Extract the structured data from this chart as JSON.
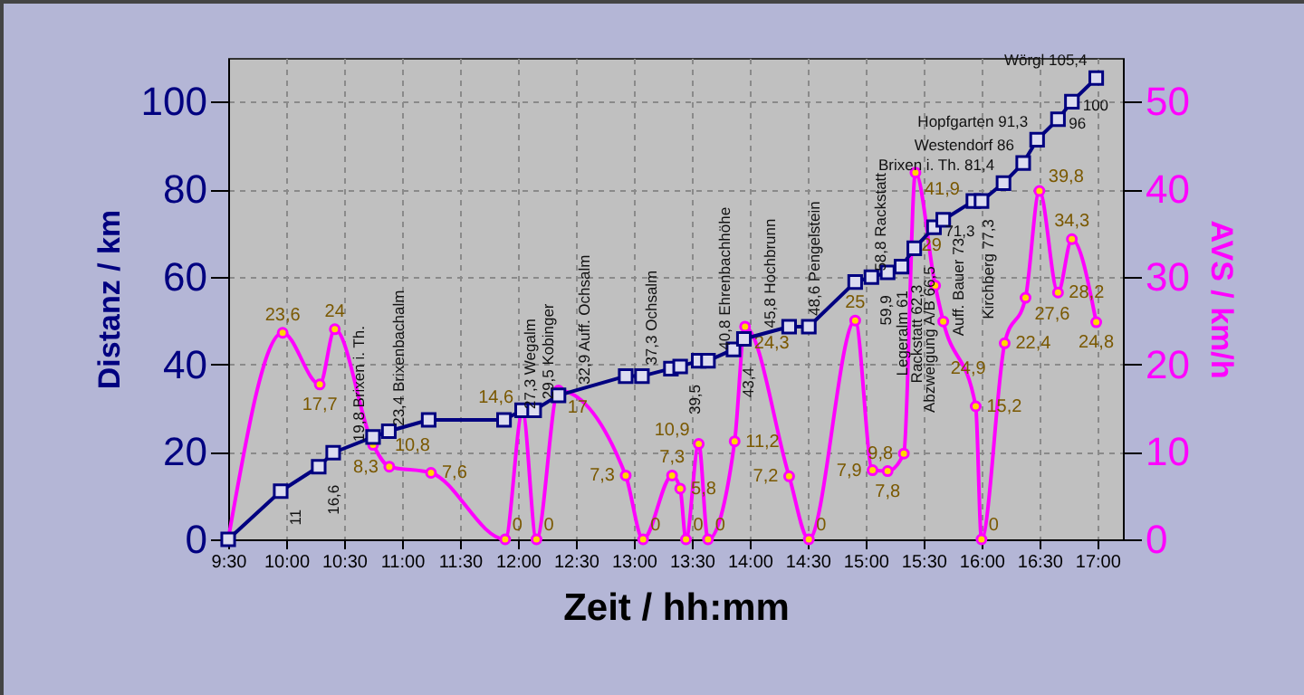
{
  "chart_data": {
    "type": "line",
    "xlabel": "Zeit / hh:mm",
    "ylabel": "Distanz / km",
    "y2label": "AVS / km/h",
    "xlim": [
      9.5,
      17.22
    ],
    "ylim": [
      0,
      110
    ],
    "y2lim": [
      0,
      55
    ],
    "xticks": [
      {
        "value": 9.5,
        "label": "9:30"
      },
      {
        "value": 10,
        "label": "10:00"
      },
      {
        "value": 10.5,
        "label": "10:30"
      },
      {
        "value": 11,
        "label": "11:00"
      },
      {
        "value": 11.5,
        "label": "11:30"
      },
      {
        "value": 12,
        "label": "12:00"
      },
      {
        "value": 12.5,
        "label": "12:30"
      },
      {
        "value": 13,
        "label": "13:00"
      },
      {
        "value": 13.5,
        "label": "13:30"
      },
      {
        "value": 14,
        "label": "14:00"
      },
      {
        "value": 14.5,
        "label": "14:30"
      },
      {
        "value": 15,
        "label": "15:00"
      },
      {
        "value": 15.5,
        "label": "15:30"
      },
      {
        "value": 16,
        "label": "16:00"
      },
      {
        "value": 16.5,
        "label": "16:30"
      },
      {
        "value": 17,
        "label": "17:00"
      }
    ],
    "yticks": [
      0,
      20,
      40,
      60,
      80,
      100
    ],
    "y2ticks": [
      0,
      10,
      20,
      30,
      40,
      50
    ],
    "grid": true,
    "series": [
      {
        "color": "#000080",
        "marker": "square",
        "x": [
          9.5,
          9.953,
          10.281,
          10.406,
          10.75,
          10.886,
          11.23,
          11.88,
          12.036,
          12.14,
          12.35,
          12.93,
          13.07,
          13.32,
          13.4,
          13.56,
          13.64,
          13.86,
          13.95,
          14.34,
          14.51,
          14.91,
          15.05,
          15.19,
          15.31,
          15.42,
          15.59,
          15.67,
          15.93,
          16.0,
          16.19,
          16.36,
          16.48,
          16.66,
          16.78,
          16.99
        ],
        "values": [
          0,
          11,
          16.6,
          19.8,
          23.4,
          24.7,
          27.3,
          27.3,
          29.5,
          29.5,
          32.9,
          37.3,
          37.3,
          39,
          39.5,
          40.8,
          40.8,
          43.4,
          45.8,
          48.6,
          48.6,
          58.8,
          59.9,
          61,
          62.3,
          66.5,
          71.3,
          73,
          77.3,
          77.3,
          81.4,
          86,
          91.3,
          96,
          100,
          105.4
        ]
      },
      {
        "color": "#ff00ff",
        "marker": "circle",
        "axis": "y2",
        "x": [
          9.5,
          9.97,
          10.29,
          10.42,
          10.75,
          10.89,
          11.25,
          11.89,
          12.04,
          12.16,
          12.35,
          12.93,
          13.08,
          13.33,
          13.4,
          13.45,
          13.56,
          13.64,
          13.87,
          13.96,
          14.34,
          14.51,
          14.91,
          15.06,
          15.19,
          15.33,
          15.43,
          15.6,
          15.67,
          15.95,
          16.0,
          16.2,
          16.38,
          16.5,
          16.66,
          16.78,
          16.99
        ],
        "values": [
          0,
          23.6,
          17.7,
          24,
          10.8,
          8.3,
          7.6,
          0,
          14.6,
          0,
          17,
          7.3,
          0,
          7.3,
          5.8,
          0,
          10.9,
          0,
          11.2,
          24.3,
          7.2,
          0,
          25,
          7.9,
          7.8,
          9.8,
          41.9,
          29,
          24.9,
          15.2,
          0,
          22.4,
          27.6,
          39.8,
          28.2,
          34.3,
          24.8
        ],
        "value_labels": [
          null,
          "23,6",
          "17,7",
          "24",
          "10,8",
          "8,3",
          "7,6",
          "0",
          "14,6",
          "0",
          "17",
          "7,3",
          "0",
          "7,3",
          "5,8",
          "0",
          "10,9",
          "0",
          "11,2",
          "24,3",
          "7,2",
          "0",
          "25",
          "7,9",
          "7,8",
          "9,8",
          "41,9",
          "29",
          "24,9",
          "15,2",
          "0",
          "22,4",
          "27,6",
          "39,8",
          "28,2",
          "34,3",
          "24,8"
        ]
      }
    ],
    "annotations": [
      {
        "text": "11",
        "x": 9.953,
        "y": 11
      },
      {
        "text": "16,6",
        "x": 10.281,
        "y": 16.6
      },
      {
        "text": "19,8 Brixen i. Th.",
        "x": 10.406,
        "y": 19.8
      },
      {
        "text": "23,4 Brixenbachalm",
        "x": 10.75,
        "y": 23.4
      },
      {
        "text": "27,3 Wegalm",
        "x": 11.88,
        "y": 27.3
      },
      {
        "text": "29,5 Kobinger",
        "x": 12.036,
        "y": 29.5
      },
      {
        "text": "32,9 Auff. Ochsalm",
        "x": 12.35,
        "y": 32.9
      },
      {
        "text": "37,3 Ochsalm",
        "x": 12.93,
        "y": 37.3
      },
      {
        "text": "39,5",
        "x": 13.4,
        "y": 39.5
      },
      {
        "text": "40,8 Ehrenbachhöhe",
        "x": 13.56,
        "y": 40.8
      },
      {
        "text": "43,4",
        "x": 13.86,
        "y": 43.4
      },
      {
        "text": "45,8 Hochbrunn",
        "x": 13.95,
        "y": 45.8
      },
      {
        "text": "48,6 Pengelstein",
        "x": 14.34,
        "y": 48.6
      },
      {
        "text": "58,8 Rackstatt",
        "x": 14.91,
        "y": 58.8
      },
      {
        "text": "59,9",
        "x": 15.05,
        "y": 59.9
      },
      {
        "text": "Legeralm 61",
        "x": 15.19,
        "y": 61
      },
      {
        "text": "Rackstatt 62,3",
        "x": 15.31,
        "y": 62.3
      },
      {
        "text": "Abzweigung A/B 66,5",
        "x": 15.42,
        "y": 66.5
      },
      {
        "text": "71,3",
        "x": 15.59,
        "y": 71.3
      },
      {
        "text": "Auff. Bauer 73",
        "x": 15.67,
        "y": 73
      },
      {
        "text": "Kirchberg 77,3",
        "x": 15.93,
        "y": 77.3
      },
      {
        "text": "Brixen i. Th. 81,4",
        "x": 16.19,
        "y": 81.4
      },
      {
        "text": "Westendorf 86",
        "x": 16.36,
        "y": 86
      },
      {
        "text": "Hopfgarten 91,3",
        "x": 16.48,
        "y": 91.3
      },
      {
        "text": "96",
        "x": 16.66,
        "y": 96
      },
      {
        "text": "100",
        "x": 16.78,
        "y": 100
      },
      {
        "text": "Wörgl 105,4",
        "x": 16.99,
        "y": 105.4
      }
    ]
  }
}
